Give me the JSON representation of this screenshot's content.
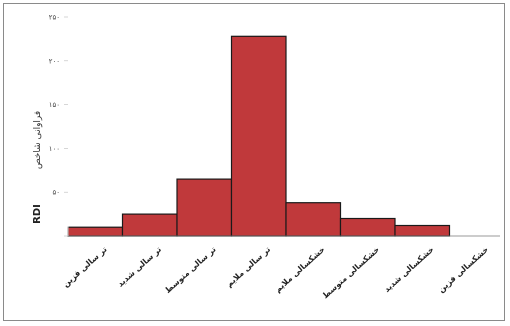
{
  "chart_data": {
    "type": "bar",
    "categories": [
      "تر سالی فزین",
      "تر سالی شدید",
      "تر سالی متوسط",
      "تر سالی ملایم",
      "خشکسالی ملایم",
      "خشکسالی متوسط",
      "خشکسالی شدید",
      "خشکسالی فزین"
    ],
    "values": [
      10,
      25,
      65,
      228,
      38,
      20,
      12,
      0
    ],
    "ylim": [
      0,
      250
    ],
    "yticks": [
      0,
      50,
      100,
      150,
      200,
      250
    ],
    "ytick_labels": [
      "",
      "۵۰",
      "۱۰۰",
      "۱۵۰",
      "۲۰۰",
      "۲۵۰"
    ],
    "ylabel": "فراوانی شاخص",
    "ylabel_secondary": "RDI",
    "grid": false,
    "colors": {
      "bar_fill": "#c0393b",
      "bar_stroke": "#1a1a1a"
    }
  }
}
